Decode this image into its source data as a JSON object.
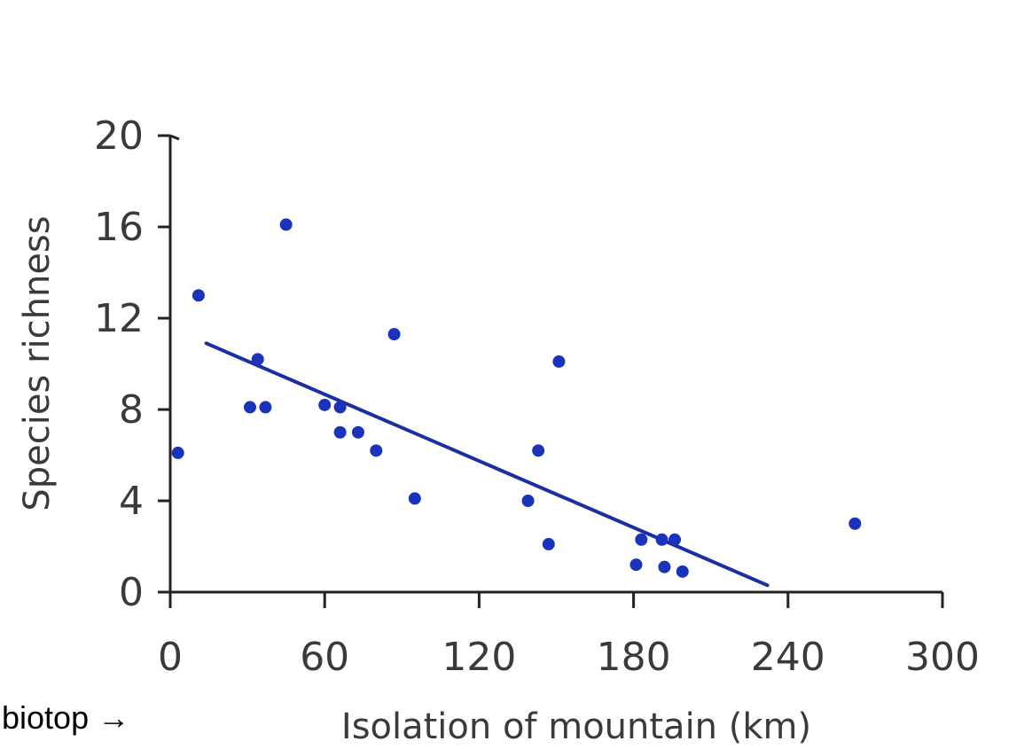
{
  "side_label": "biotop →",
  "colors": {
    "point": "#1a33b8",
    "line": "#1a2fa0",
    "axis": "#222222",
    "text": "#3a3a3a"
  },
  "chart_data": {
    "type": "scatter",
    "title": "",
    "xlabel": "Isolation of mountain (km)",
    "ylabel": "Species richness",
    "xlim": [
      0,
      300
    ],
    "ylim": [
      0,
      20
    ],
    "xticks": [
      0,
      60,
      120,
      180,
      240,
      300
    ],
    "yticks": [
      0,
      4,
      8,
      12,
      16,
      20
    ],
    "grid": false,
    "legend": "none",
    "points": [
      {
        "x": 3,
        "y": 6.1
      },
      {
        "x": 11,
        "y": 13.0
      },
      {
        "x": 31,
        "y": 8.1
      },
      {
        "x": 34,
        "y": 10.2
      },
      {
        "x": 37,
        "y": 8.1
      },
      {
        "x": 45,
        "y": 16.1
      },
      {
        "x": 60,
        "y": 8.2
      },
      {
        "x": 66,
        "y": 8.1
      },
      {
        "x": 66,
        "y": 7.0
      },
      {
        "x": 73,
        "y": 7.0
      },
      {
        "x": 80,
        "y": 6.2
      },
      {
        "x": 87,
        "y": 11.3
      },
      {
        "x": 95,
        "y": 4.1
      },
      {
        "x": 139,
        "y": 4.0
      },
      {
        "x": 143,
        "y": 6.2
      },
      {
        "x": 147,
        "y": 2.1
      },
      {
        "x": 151,
        "y": 10.1
      },
      {
        "x": 181,
        "y": 1.2
      },
      {
        "x": 183,
        "y": 2.3
      },
      {
        "x": 191,
        "y": 2.3
      },
      {
        "x": 192,
        "y": 1.1
      },
      {
        "x": 196,
        "y": 2.3
      },
      {
        "x": 199,
        "y": 0.9
      },
      {
        "x": 266,
        "y": 3.0
      }
    ],
    "trendline": {
      "x": [
        14,
        232
      ],
      "y": [
        10.9,
        0.3
      ]
    }
  }
}
